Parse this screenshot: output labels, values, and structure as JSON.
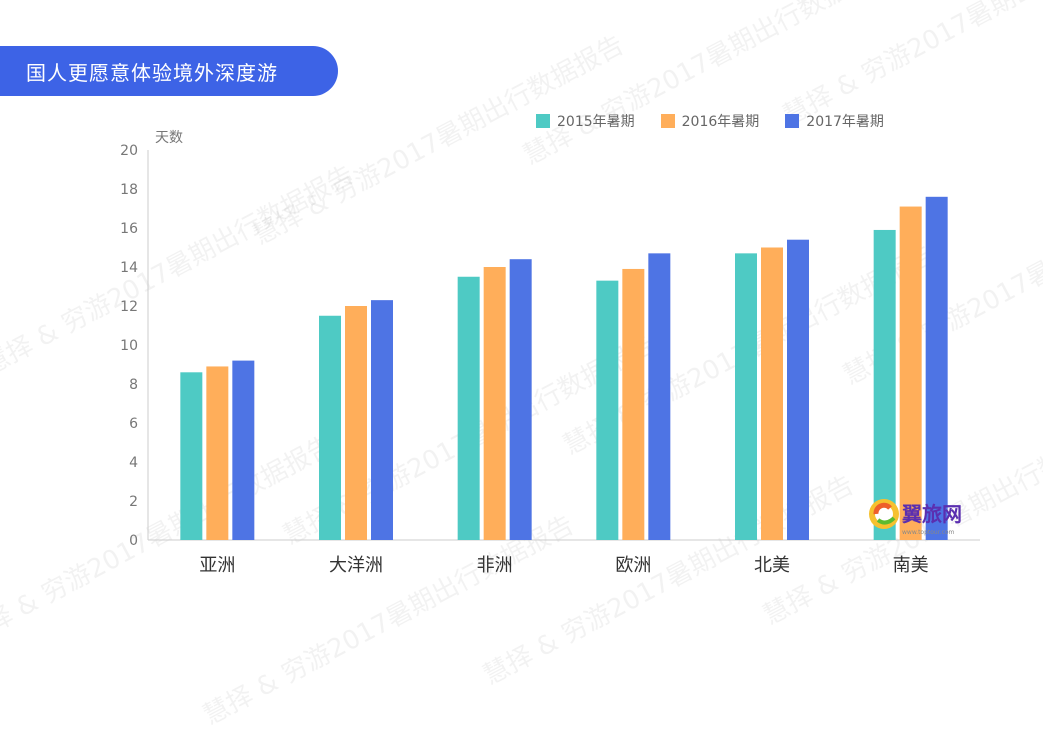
{
  "title": "国人更愿意体验境外深度游",
  "watermark_text": "慧择 & 穷游2017暑期出行数据报告",
  "logo": {
    "name": "翼旅网",
    "url": "www.toptour.com"
  },
  "colors": {
    "s2015": "#4ecac4",
    "s2016": "#ffae5a",
    "s2017": "#4e74e4",
    "accent": "#3d63e6"
  },
  "chart_data": {
    "type": "bar",
    "ylabel": "天数",
    "xlabel": "",
    "ylim": [
      0,
      20
    ],
    "yticks": [
      0,
      2,
      4,
      6,
      8,
      10,
      12,
      14,
      16,
      18,
      20
    ],
    "grid": false,
    "legend_position": "top-right",
    "categories": [
      "亚洲",
      "大洋洲",
      "非洲",
      "欧洲",
      "北美",
      "南美"
    ],
    "series": [
      {
        "name": "2015年暑期",
        "color": "#4ecac4",
        "values": [
          8.6,
          11.5,
          13.5,
          13.3,
          14.7,
          15.9
        ]
      },
      {
        "name": "2016年暑期",
        "color": "#ffae5a",
        "values": [
          8.9,
          12.0,
          14.0,
          13.9,
          15.0,
          17.1
        ]
      },
      {
        "name": "2017年暑期",
        "color": "#4e74e4",
        "values": [
          9.2,
          12.3,
          14.4,
          14.7,
          15.4,
          17.6
        ]
      }
    ]
  }
}
